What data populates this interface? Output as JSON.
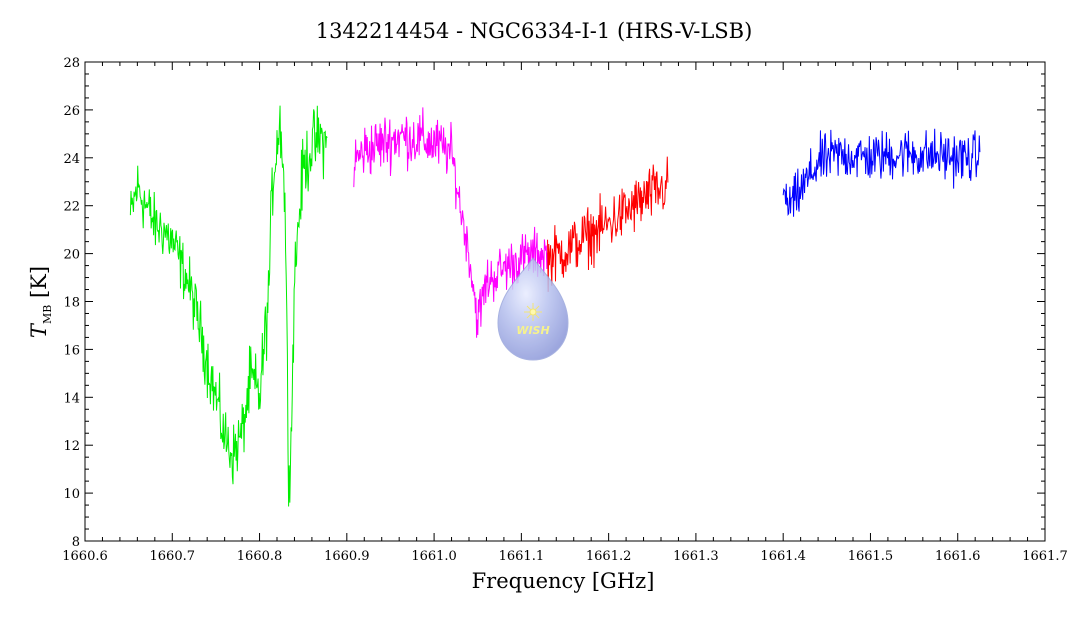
{
  "chart_data": {
    "type": "line",
    "title": "1342214454 - NGC6334-I-1 (HRS-V-LSB)",
    "xlabel": "Frequency [GHz]",
    "ylabel": {
      "main": "T",
      "subscript": "MB",
      "unit": " [K]"
    },
    "xlim": [
      1660.6,
      1661.7
    ],
    "ylim": [
      8,
      28
    ],
    "xticks": [
      "1660.6",
      "1660.7",
      "1660.8",
      "1660.9",
      "1661.0",
      "1661.1",
      "1661.2",
      "1661.3",
      "1661.4",
      "1661.5",
      "1661.6",
      "1661.7"
    ],
    "yticks": [
      "8",
      "10",
      "12",
      "14",
      "16",
      "18",
      "20",
      "22",
      "24",
      "26",
      "28"
    ],
    "grid": false,
    "logo_text": "WISH",
    "series": [
      {
        "color": "#00ee00",
        "x": [
          1660.652,
          1660.66,
          1660.67,
          1660.68,
          1660.69,
          1660.7,
          1660.71,
          1660.72,
          1660.73,
          1660.74,
          1660.75,
          1660.76,
          1660.77,
          1660.78,
          1660.79,
          1660.8,
          1660.81,
          1660.815,
          1660.82,
          1660.825,
          1660.83,
          1660.833,
          1660.836,
          1660.84,
          1660.845,
          1660.85,
          1660.86,
          1660.87,
          1660.878
        ],
        "y": [
          21.5,
          22.8,
          22.0,
          21.2,
          21.0,
          20.5,
          19.6,
          18.6,
          17.2,
          15.5,
          14.0,
          12.3,
          11.6,
          12.5,
          14.8,
          14.0,
          18.0,
          23.0,
          24.8,
          25.5,
          21.0,
          11.0,
          11.8,
          19.0,
          21.5,
          23.5,
          24.5,
          24.8,
          24.5
        ],
        "amplitude": [
          0.9,
          1.0,
          1.0,
          0.9,
          0.9,
          0.9,
          0.9,
          0.9,
          0.9,
          1.0,
          1.0,
          1.0,
          1.0,
          1.0,
          1.1,
          1.1,
          1.1,
          1.1,
          1.2,
          1.3,
          1.3,
          1.0,
          1.0,
          1.1,
          1.1,
          1.1,
          1.1,
          1.1,
          1.0
        ]
      },
      {
        "color": "#ff00ff",
        "x": [
          1660.908,
          1660.92,
          1660.94,
          1660.96,
          1660.98,
          1661.0,
          1661.02,
          1661.03,
          1661.04,
          1661.05,
          1661.06,
          1661.08,
          1661.1,
          1661.12,
          1661.13
        ],
        "y": [
          23.8,
          24.3,
          24.6,
          24.9,
          24.8,
          24.6,
          24.2,
          22.0,
          20.0,
          17.2,
          18.8,
          19.4,
          19.8,
          20.0,
          20.0
        ],
        "amplitude": [
          0.9,
          0.9,
          0.9,
          0.9,
          0.9,
          0.9,
          0.8,
          0.7,
          0.7,
          0.8,
          0.8,
          0.8,
          0.8,
          0.8,
          0.8
        ]
      },
      {
        "color": "#ff0000",
        "x": [
          1661.13,
          1661.15,
          1661.17,
          1661.19,
          1661.21,
          1661.23,
          1661.25,
          1661.268
        ],
        "y": [
          19.8,
          20.1,
          20.6,
          21.0,
          21.5,
          22.0,
          22.5,
          22.8
        ],
        "amplitude": [
          0.9,
          0.9,
          0.9,
          0.9,
          0.9,
          0.9,
          0.9,
          0.9
        ]
      },
      {
        "color": "#0000ff",
        "x": [
          1661.4,
          1661.405,
          1661.41,
          1661.42,
          1661.44,
          1661.46,
          1661.48,
          1661.5,
          1661.52,
          1661.54,
          1661.56,
          1661.58,
          1661.6,
          1661.626
        ],
        "y": [
          22.7,
          22.0,
          22.1,
          22.6,
          23.8,
          24.1,
          24.1,
          24.0,
          24.1,
          24.2,
          24.1,
          24.1,
          24.0,
          24.0
        ],
        "amplitude": [
          0.6,
          0.7,
          0.7,
          0.8,
          0.8,
          0.8,
          0.8,
          0.8,
          0.8,
          0.8,
          0.8,
          0.8,
          0.8,
          0.8
        ]
      }
    ]
  }
}
